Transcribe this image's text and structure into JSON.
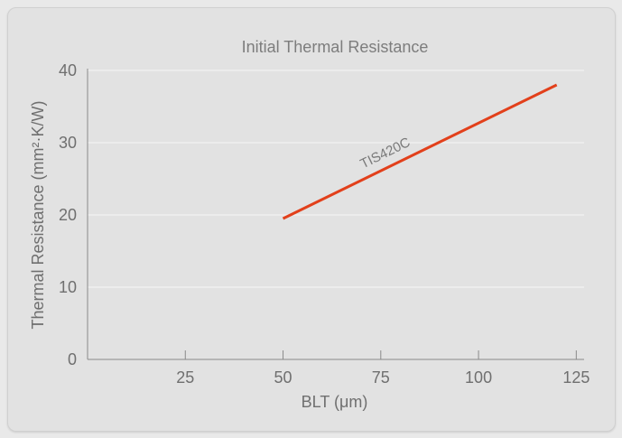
{
  "chart_data": {
    "type": "line",
    "title": "Initial Thermal Resistance",
    "xlabel": "BLT (μm)",
    "ylabel": "Thermal Resistance  (mm²·K/W)",
    "xlim": [
      0,
      127
    ],
    "ylim": [
      0,
      40
    ],
    "xticks": [
      25,
      50,
      75,
      100,
      125
    ],
    "yticks": [
      0,
      10,
      20,
      30,
      40
    ],
    "grid": true,
    "series": [
      {
        "name": "TIS420C",
        "color": "#e2401b",
        "x": [
          50,
          120
        ],
        "y": [
          19.5,
          38
        ]
      }
    ]
  }
}
